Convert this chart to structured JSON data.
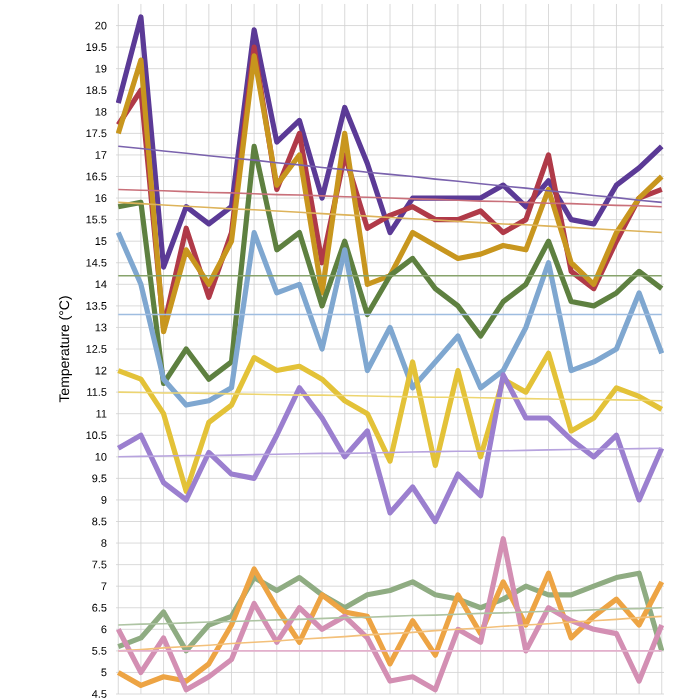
{
  "chart_data": {
    "type": "line",
    "ylabel": "Temperature (°C)",
    "categories": [
      null,
      null,
      null,
      null,
      null,
      null,
      null,
      null,
      null,
      null,
      null,
      null,
      null,
      null,
      null,
      null,
      null,
      null,
      null,
      null,
      null,
      null,
      null,
      null,
      null
    ],
    "ylim": [
      4.5,
      20.5
    ],
    "yticks": [
      4.5,
      5,
      5.5,
      6,
      6.5,
      7,
      7.5,
      8,
      8.5,
      9,
      9.5,
      10,
      10.5,
      11,
      11.5,
      12,
      12.5,
      13,
      13.5,
      14,
      14.5,
      15,
      15.5,
      16,
      16.5,
      17,
      17.5,
      18,
      18.5,
      19,
      19.5,
      20
    ],
    "grid": true,
    "tick_labels": "y",
    "series": [
      {
        "color": "#5b3a96",
        "values": [
          18.2,
          20.2,
          14.4,
          15.8,
          15.4,
          15.8,
          19.9,
          17.3,
          17.8,
          16.0,
          18.1,
          16.8,
          15.2,
          16.0,
          16.0,
          16.0,
          16.0,
          16.3,
          15.8,
          16.4,
          15.5,
          15.4,
          16.3,
          16.7,
          17.2
        ]
      },
      {
        "color": "#b03a48",
        "values": [
          17.7,
          18.5,
          13.0,
          15.3,
          13.7,
          15.2,
          19.5,
          16.2,
          17.5,
          14.5,
          17.0,
          15.3,
          15.6,
          15.8,
          15.5,
          15.5,
          15.7,
          15.2,
          15.5,
          17.0,
          14.3,
          13.9,
          15.0,
          16.0,
          16.2
        ]
      },
      {
        "color": "#c8961e",
        "values": [
          17.5,
          19.2,
          12.9,
          14.8,
          14.0,
          15.0,
          19.3,
          16.3,
          17.0,
          13.8,
          17.5,
          14.0,
          14.2,
          15.2,
          14.9,
          14.6,
          14.7,
          14.9,
          14.8,
          16.2,
          14.5,
          14.0,
          15.2,
          16.0,
          16.5
        ]
      },
      {
        "color": "#5e8040",
        "values": [
          15.8,
          15.9,
          11.7,
          12.5,
          11.8,
          12.2,
          17.2,
          14.8,
          15.2,
          13.5,
          15.0,
          13.3,
          14.2,
          14.6,
          13.9,
          13.5,
          12.8,
          13.6,
          14.0,
          15.0,
          13.6,
          13.5,
          13.8,
          14.3,
          13.9
        ]
      },
      {
        "color": "#7fa7d0",
        "values": [
          15.2,
          14.0,
          11.8,
          11.2,
          11.3,
          11.6,
          15.2,
          13.8,
          14.0,
          12.5,
          14.8,
          12.0,
          13.0,
          11.6,
          12.2,
          12.8,
          11.6,
          12.0,
          13.0,
          14.5,
          12.0,
          12.2,
          12.5,
          13.8,
          12.4
        ]
      },
      {
        "color": "#e3c238",
        "values": [
          12.0,
          11.8,
          11.0,
          9.2,
          10.8,
          11.2,
          12.3,
          12.0,
          12.1,
          11.8,
          11.3,
          11.0,
          9.9,
          12.2,
          9.8,
          12.0,
          10.0,
          11.8,
          11.5,
          12.4,
          10.6,
          10.9,
          11.6,
          11.4,
          11.1
        ]
      },
      {
        "color": "#9b7fcf",
        "values": [
          10.2,
          10.5,
          9.4,
          9.0,
          10.1,
          9.6,
          9.5,
          10.5,
          11.6,
          10.9,
          10.0,
          10.6,
          8.7,
          9.3,
          8.5,
          9.6,
          9.1,
          11.9,
          10.9,
          10.9,
          10.4,
          10.0,
          10.5,
          9.0,
          10.2
        ]
      },
      {
        "color": "#8fac82",
        "values": [
          5.6,
          5.8,
          6.4,
          5.5,
          6.1,
          6.3,
          7.2,
          6.9,
          7.2,
          6.8,
          6.5,
          6.8,
          6.9,
          7.1,
          6.8,
          6.7,
          6.5,
          6.7,
          7.0,
          6.8,
          6.8,
          7.0,
          7.2,
          7.3,
          5.5
        ]
      },
      {
        "color": "#eda444",
        "values": [
          5.0,
          4.7,
          4.9,
          4.8,
          5.2,
          6.1,
          7.4,
          6.5,
          5.7,
          6.8,
          6.4,
          6.3,
          5.2,
          6.2,
          5.4,
          6.8,
          5.9,
          7.1,
          6.1,
          7.3,
          5.8,
          6.3,
          6.7,
          6.1,
          7.1
        ]
      },
      {
        "color": "#d38fb3",
        "values": [
          6.0,
          5.0,
          5.8,
          4.6,
          4.9,
          5.3,
          6.6,
          5.7,
          6.5,
          6.0,
          6.3,
          5.8,
          4.8,
          4.9,
          4.6,
          6.0,
          5.7,
          8.1,
          5.5,
          6.5,
          6.2,
          6.0,
          5.9,
          4.8,
          6.1
        ]
      },
      {
        "type": "line",
        "color": "#7a62ad",
        "values": [
          17.2,
          17.15,
          17.09,
          17.04,
          16.98,
          16.93,
          16.88,
          16.82,
          16.77,
          16.71,
          16.66,
          16.6,
          16.55,
          16.5,
          16.44,
          16.39,
          16.33,
          16.28,
          16.23,
          16.17,
          16.12,
          16.06,
          16.01,
          15.95,
          15.9
        ]
      },
      {
        "type": "line",
        "color": "#c9707a",
        "values": [
          16.2,
          16.18,
          16.17,
          16.15,
          16.13,
          16.12,
          16.1,
          16.08,
          16.07,
          16.05,
          16.03,
          16.02,
          16.0,
          15.98,
          15.97,
          15.95,
          15.93,
          15.92,
          15.9,
          15.88,
          15.87,
          15.85,
          15.83,
          15.82,
          15.8
        ]
      },
      {
        "type": "line",
        "color": "#ddb35a",
        "values": [
          15.9,
          15.87,
          15.84,
          15.81,
          15.78,
          15.75,
          15.73,
          15.7,
          15.67,
          15.64,
          15.61,
          15.58,
          15.55,
          15.52,
          15.49,
          15.46,
          15.43,
          15.4,
          15.38,
          15.35,
          15.32,
          15.29,
          15.26,
          15.23,
          15.2
        ]
      },
      {
        "type": "line",
        "color": "#87a36c",
        "values": [
          14.2,
          14.2,
          14.2,
          14.2,
          14.2,
          14.2,
          14.2,
          14.2,
          14.2,
          14.2,
          14.2,
          14.2,
          14.2,
          14.2,
          14.2,
          14.2,
          14.2,
          14.2,
          14.2,
          14.2,
          14.2,
          14.2,
          14.2,
          14.2,
          14.2
        ]
      },
      {
        "type": "line",
        "color": "#9fbde0",
        "values": [
          13.3,
          13.3,
          13.3,
          13.3,
          13.3,
          13.3,
          13.3,
          13.3,
          13.3,
          13.3,
          13.3,
          13.3,
          13.3,
          13.3,
          13.3,
          13.3,
          13.3,
          13.3,
          13.3,
          13.3,
          13.3,
          13.3,
          13.3,
          13.3,
          13.3
        ]
      },
      {
        "type": "line",
        "color": "#edd570",
        "values": [
          11.5,
          11.49,
          11.48,
          11.48,
          11.47,
          11.46,
          11.45,
          11.44,
          11.43,
          11.43,
          11.42,
          11.41,
          11.4,
          11.39,
          11.38,
          11.38,
          11.37,
          11.36,
          11.35,
          11.34,
          11.33,
          11.33,
          11.32,
          11.31,
          11.3
        ]
      },
      {
        "type": "line",
        "color": "#b7a3de",
        "values": [
          10.0,
          10.01,
          10.02,
          10.03,
          10.03,
          10.04,
          10.05,
          10.06,
          10.07,
          10.08,
          10.08,
          10.09,
          10.1,
          10.11,
          10.12,
          10.13,
          10.13,
          10.14,
          10.15,
          10.16,
          10.17,
          10.18,
          10.18,
          10.19,
          10.2
        ]
      },
      {
        "type": "line",
        "color": "#aec4a3",
        "values": [
          6.1,
          6.12,
          6.13,
          6.15,
          6.17,
          6.18,
          6.2,
          6.22,
          6.23,
          6.25,
          6.27,
          6.28,
          6.3,
          6.32,
          6.33,
          6.35,
          6.37,
          6.38,
          6.4,
          6.42,
          6.43,
          6.45,
          6.47,
          6.48,
          6.5
        ]
      },
      {
        "type": "line",
        "color": "#f3c07a",
        "values": [
          5.5,
          5.53,
          5.57,
          5.6,
          5.63,
          5.67,
          5.7,
          5.73,
          5.77,
          5.8,
          5.83,
          5.87,
          5.9,
          5.93,
          5.97,
          6.0,
          6.03,
          6.07,
          6.1,
          6.13,
          6.17,
          6.2,
          6.23,
          6.27,
          6.3
        ]
      },
      {
        "type": "line",
        "color": "#e3b0cc",
        "values": [
          5.5,
          5.5,
          5.5,
          5.5,
          5.5,
          5.5,
          5.5,
          5.5,
          5.5,
          5.5,
          5.5,
          5.5,
          5.5,
          5.5,
          5.5,
          5.5,
          5.5,
          5.5,
          5.5,
          5.5,
          5.5,
          5.5,
          5.5,
          5.5,
          5.5
        ]
      }
    ]
  }
}
